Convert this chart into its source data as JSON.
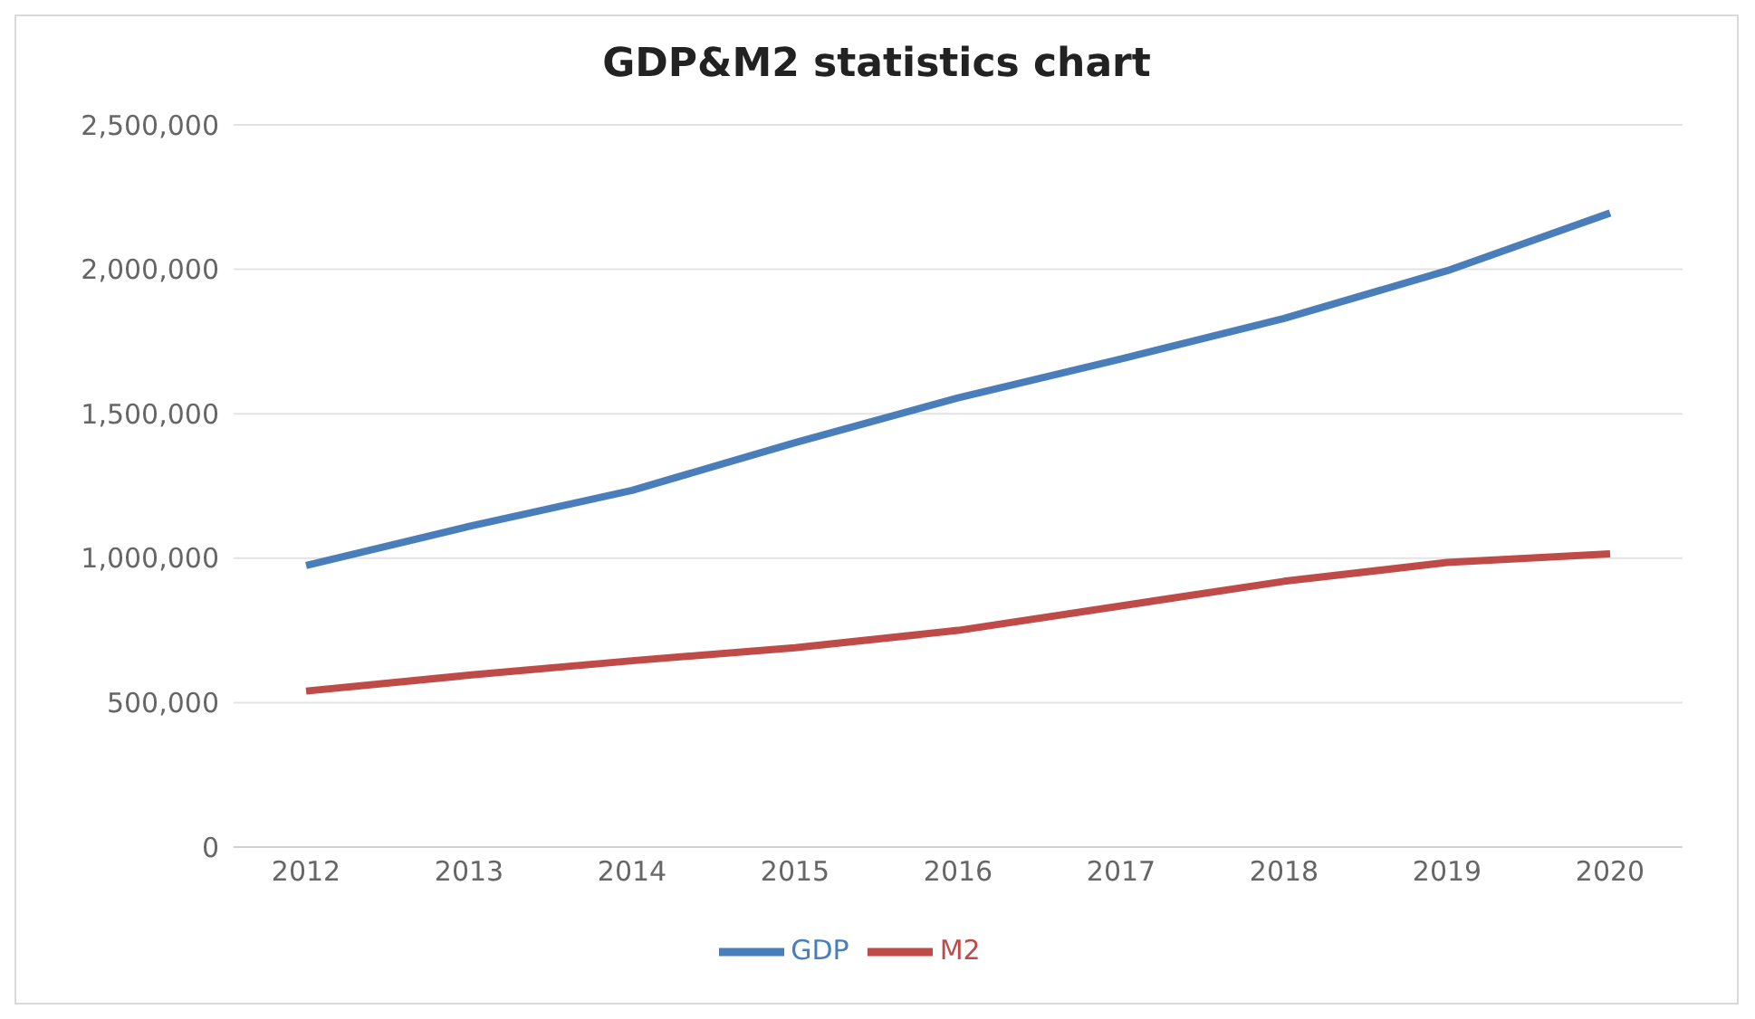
{
  "chart_data": {
    "type": "line",
    "title": "GDP&M2 statistics chart",
    "categories": [
      "2012",
      "2013",
      "2014",
      "2015",
      "2016",
      "2017",
      "2018",
      "2019",
      "2020"
    ],
    "series": [
      {
        "name": "GDP",
        "color": "#4a7ebb",
        "values": [
          975000,
          1110000,
          1235000,
          1400000,
          1555000,
          1690000,
          1830000,
          1995000,
          2195000
        ]
      },
      {
        "name": "M2",
        "color": "#be4b48",
        "values": [
          540000,
          595000,
          645000,
          690000,
          750000,
          835000,
          920000,
          985000,
          1015000
        ]
      }
    ],
    "ylim": [
      0,
      2500000
    ],
    "yticks": [
      {
        "value": 0,
        "label": "0"
      },
      {
        "value": 500000,
        "label": "500,000"
      },
      {
        "value": 1000000,
        "label": "1,000,000"
      },
      {
        "value": 1500000,
        "label": "1,500,000"
      },
      {
        "value": 2000000,
        "label": "2,000,000"
      },
      {
        "value": 2500000,
        "label": "2,500,000"
      }
    ],
    "grid": "y",
    "legend": "bottom",
    "marker": "none",
    "line_style": "solid"
  }
}
